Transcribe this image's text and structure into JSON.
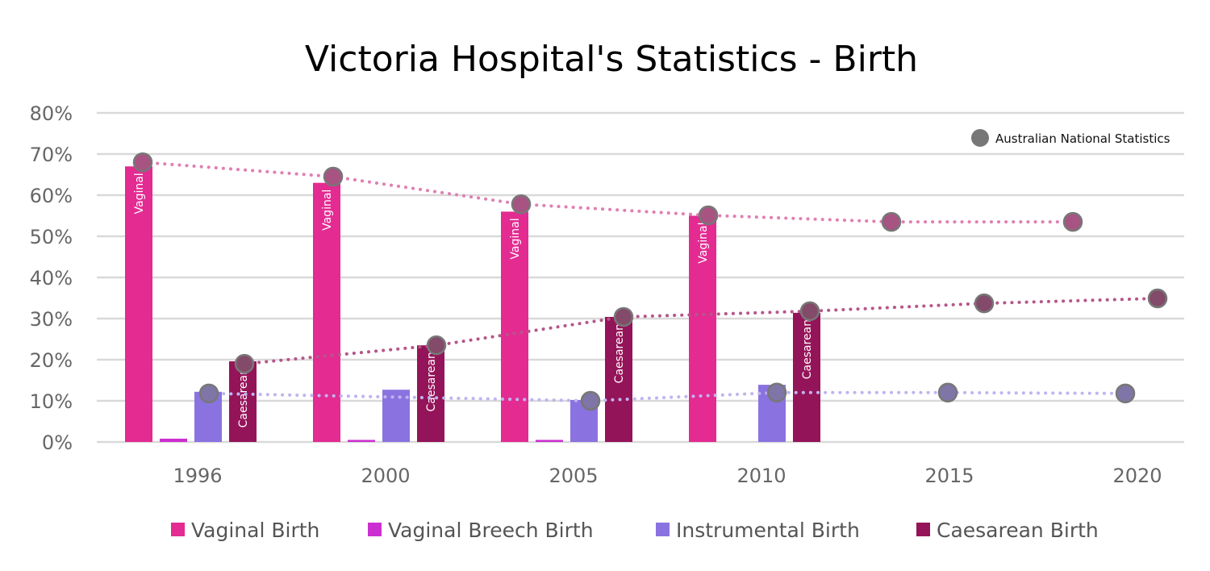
{
  "chart_data": {
    "type": "bar",
    "title": "Victoria Hospital's Statistics - Birth",
    "categories": [
      "1996",
      "2000",
      "2005",
      "2010",
      "2015",
      "2020"
    ],
    "ylim": [
      0,
      80
    ],
    "yticks": [
      "0%",
      "10%",
      "20%",
      "30%",
      "40%",
      "50%",
      "60%",
      "70%",
      "80%"
    ],
    "grid": true,
    "legend_position": "bottom",
    "series": [
      {
        "name": "Vaginal Birth",
        "color": "#e32b91",
        "bar_label": "Vaginal",
        "values": [
          67,
          63,
          56,
          55,
          null,
          null
        ]
      },
      {
        "name": "Vaginal Breech Birth",
        "color": "#cc2fd0",
        "values": [
          0.8,
          0.5,
          0.5,
          0,
          null,
          null
        ]
      },
      {
        "name": "Instrumental Birth",
        "color": "#8a73e0",
        "values": [
          12.2,
          12.7,
          10.2,
          13.9,
          null,
          null
        ]
      },
      {
        "name": "Caesarean Birth",
        "color": "#941459",
        "bar_label": "Caesarean",
        "values": [
          19.6,
          23.5,
          30.4,
          31.4,
          null,
          null
        ]
      }
    ],
    "national": {
      "name": "Australian National Statistics",
      "marker_color": "#777777",
      "series": [
        {
          "of": "Vaginal Birth",
          "line_color": "#e07fb3",
          "values": [
            68,
            64.5,
            57.8,
            55.1,
            53.5,
            53.5
          ]
        },
        {
          "of": "Instrumental Birth",
          "line_color": "#c0b4f0",
          "values": [
            11.8,
            null,
            10,
            12,
            12,
            11.8
          ]
        },
        {
          "of": "Caesarean Birth",
          "line_color": "#b5568a",
          "values": [
            19,
            23.5,
            30.4,
            31.8,
            33.7,
            34.9
          ]
        }
      ]
    }
  }
}
